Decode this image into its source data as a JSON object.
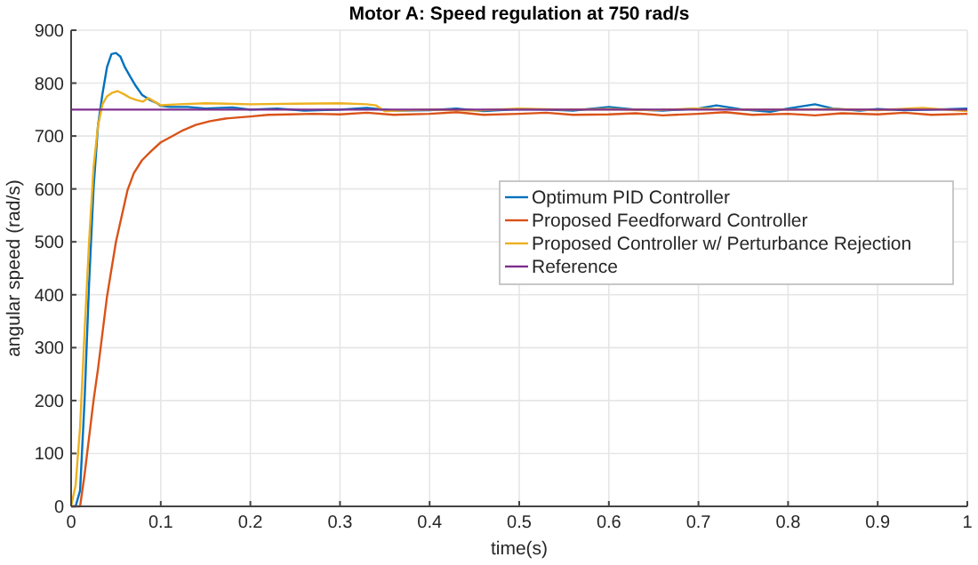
{
  "chart_data": {
    "type": "line",
    "title": "Motor A: Speed regulation at 750 rad/s",
    "xlabel": "time(s)",
    "ylabel": "angular speed (rad/s)",
    "xlim": [
      0,
      1
    ],
    "xticks": [
      0,
      0.1,
      0.2,
      0.3,
      0.4,
      0.5,
      0.6,
      0.7,
      0.8,
      0.9,
      1
    ],
    "ylim": [
      0,
      900
    ],
    "yticks": [
      0,
      100,
      200,
      300,
      400,
      500,
      600,
      700,
      800,
      900
    ],
    "grid": true,
    "legend": "right",
    "line_style": "solid",
    "marker": "none",
    "series": [
      {
        "name": "Optimum PID Controller",
        "color": "#0072bd",
        "x": [
          0,
          0.005,
          0.01,
          0.015,
          0.02,
          0.025,
          0.03,
          0.035,
          0.04,
          0.045,
          0.05,
          0.055,
          0.06,
          0.066,
          0.072,
          0.079,
          0.088,
          0.096,
          0.1,
          0.11,
          0.13,
          0.15,
          0.18,
          0.2,
          0.23,
          0.26,
          0.3,
          0.33,
          0.36,
          0.4,
          0.43,
          0.46,
          0.5,
          0.53,
          0.56,
          0.6,
          0.63,
          0.66,
          0.7,
          0.72,
          0.75,
          0.78,
          0.8,
          0.83,
          0.85,
          0.88,
          0.9,
          0.93,
          0.96,
          1
        ],
        "values": [
          0,
          0,
          30,
          200,
          420,
          600,
          720,
          780,
          830,
          855,
          857,
          850,
          830,
          812,
          795,
          778,
          768,
          762,
          757,
          755,
          755,
          752,
          754,
          750,
          752,
          748,
          750,
          753,
          748,
          749,
          752,
          747,
          751,
          750,
          748,
          755,
          750,
          748,
          752,
          758,
          750,
          746,
          752,
          760,
          752,
          748,
          751,
          749,
          750,
          752
        ]
      },
      {
        "name": "Proposed Feedforward Controller",
        "color": "#d95319",
        "x": [
          0,
          0.01,
          0.015,
          0.02,
          0.025,
          0.03,
          0.04,
          0.05,
          0.063,
          0.07,
          0.079,
          0.089,
          0.1,
          0.112,
          0.125,
          0.139,
          0.155,
          0.172,
          0.2,
          0.22,
          0.244,
          0.27,
          0.3,
          0.33,
          0.36,
          0.4,
          0.43,
          0.46,
          0.5,
          0.53,
          0.56,
          0.6,
          0.63,
          0.66,
          0.7,
          0.73,
          0.76,
          0.8,
          0.83,
          0.86,
          0.9,
          0.93,
          0.96,
          1
        ],
        "values": [
          0,
          0,
          60,
          130,
          200,
          260,
          396,
          500,
          598,
          630,
          654,
          671,
          688,
          699,
          711,
          721,
          728,
          733,
          737,
          740,
          741,
          742,
          741,
          744,
          740,
          742,
          745,
          740,
          742,
          744,
          740,
          741,
          743,
          739,
          742,
          745,
          740,
          742,
          739,
          743,
          741,
          744,
          740,
          742
        ]
      },
      {
        "name": "Proposed Controller w/ Perturbance Rejection",
        "color": "#edb120",
        "x": [
          0,
          0.005,
          0.01,
          0.015,
          0.02,
          0.025,
          0.03,
          0.035,
          0.04,
          0.046,
          0.052,
          0.06,
          0.066,
          0.073,
          0.08,
          0.086,
          0.093,
          0.1,
          0.12,
          0.15,
          0.2,
          0.25,
          0.3,
          0.33,
          0.34,
          0.35,
          0.4,
          0.45,
          0.5,
          0.55,
          0.6,
          0.65,
          0.7,
          0.75,
          0.8,
          0.85,
          0.9,
          0.95,
          1
        ],
        "values": [
          0,
          40,
          150,
          330,
          500,
          640,
          720,
          760,
          775,
          782,
          785,
          778,
          772,
          768,
          765,
          772,
          765,
          758,
          760,
          762,
          760,
          761,
          762,
          760,
          758,
          747,
          750,
          748,
          752,
          750,
          751,
          749,
          752,
          750,
          750,
          751,
          749,
          753,
          747
        ]
      },
      {
        "name": "Reference",
        "color": "#7e2f8e",
        "x": [
          0,
          1
        ],
        "values": [
          750,
          750
        ]
      }
    ]
  }
}
